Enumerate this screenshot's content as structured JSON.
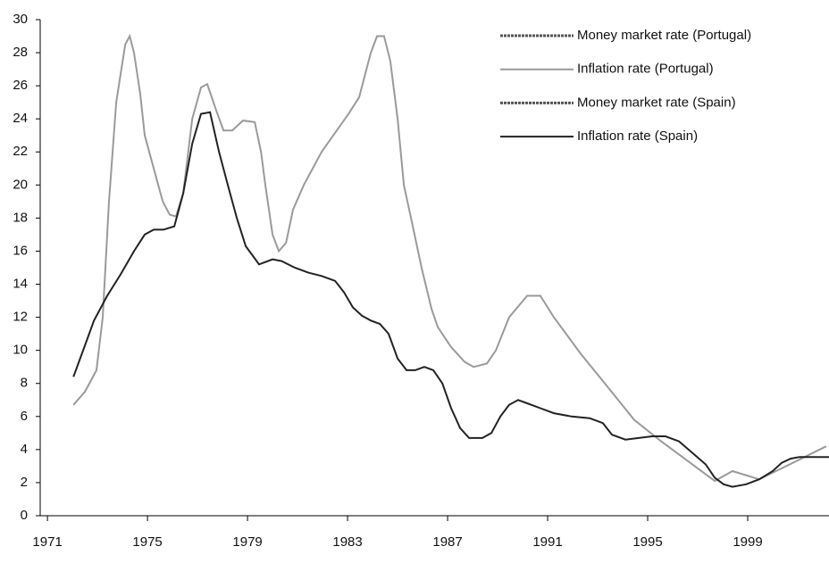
{
  "chart_data": {
    "type": "line",
    "xlim": [
      1970.71,
      2002.25
    ],
    "xticks": [
      1971,
      1975,
      1979,
      1983,
      1987,
      1991,
      1995,
      1999
    ],
    "ylim": [
      0,
      30
    ],
    "yticks": [
      0,
      2,
      4,
      6,
      8,
      10,
      12,
      14,
      16,
      18,
      20,
      22,
      24,
      26,
      28,
      30
    ],
    "grid": false,
    "legend": "upper right",
    "series": [
      {
        "name": "Money market rate (Portugal)",
        "color": "#555555",
        "dash": true,
        "x": [],
        "values": []
      },
      {
        "name": "Inflation rate (Portugal)",
        "color": "#9a9a9a",
        "dash": false,
        "x": [
          1972.04,
          1972.5,
          1972.96,
          1973.21,
          1973.46,
          1973.75,
          1974.11,
          1974.29,
          1974.46,
          1974.71,
          1974.89,
          1975.25,
          1975.61,
          1975.89,
          1976.14,
          1976.43,
          1976.79,
          1977.14,
          1977.39,
          1977.75,
          1978.04,
          1978.39,
          1978.82,
          1979.29,
          1979.54,
          1979.71,
          1980,
          1980.25,
          1980.54,
          1980.82,
          1981.25,
          1981.96,
          1982.43,
          1983.04,
          1983.46,
          1983.93,
          1984.18,
          1984.46,
          1984.71,
          1985,
          1985.25,
          1985.61,
          1985.96,
          1986.36,
          1986.61,
          1987.14,
          1987.68,
          1988.04,
          1988.57,
          1988.93,
          1989.46,
          1990.18,
          1990.71,
          1991.25,
          1992.32,
          1993.39,
          1994.46,
          1995.54,
          1996.61,
          1997.68,
          1998.39,
          1999.46,
          2000.54,
          2002.14
        ],
        "values": [
          6.7,
          7.5,
          8.8,
          12,
          19,
          25,
          28.5,
          29,
          28,
          25.5,
          23,
          21,
          19,
          18.2,
          18.1,
          19.5,
          24,
          25.9,
          26.1,
          24.5,
          23.3,
          23.3,
          23.9,
          23.8,
          22,
          20,
          17,
          16,
          16.5,
          18.5,
          20,
          22,
          23,
          24.3,
          25.3,
          28,
          29,
          29,
          27.5,
          24,
          20,
          17.5,
          15,
          12.5,
          11.4,
          10.2,
          9.3,
          9,
          9.2,
          10,
          12,
          13.3,
          13.3,
          12,
          9.8,
          7.8,
          5.8,
          4.5,
          3.3,
          2.1,
          2.7,
          2.2,
          3,
          4.2
        ]
      },
      {
        "name": "Money market rate (Spain)",
        "color": "#555555",
        "dash": true,
        "x": [],
        "values": []
      },
      {
        "name": "Inflation rate (Spain)",
        "color": "#222222",
        "dash": false,
        "x": [
          1972.04,
          1972.5,
          1972.86,
          1973.39,
          1973.93,
          1974.46,
          1974.89,
          1975.25,
          1975.64,
          1976.07,
          1976.43,
          1976.79,
          1977.14,
          1977.5,
          1977.86,
          1978.21,
          1978.57,
          1978.93,
          1979.46,
          1980,
          1980.36,
          1980.89,
          1981.43,
          1981.96,
          1982.5,
          1982.86,
          1983.21,
          1983.57,
          1983.93,
          1984.29,
          1984.64,
          1985,
          1985.36,
          1985.71,
          1986.07,
          1986.43,
          1986.79,
          1987.14,
          1987.5,
          1987.86,
          1988.39,
          1988.75,
          1989.11,
          1989.46,
          1989.82,
          1990.18,
          1990.71,
          1991.25,
          1991.96,
          1992.68,
          1993.21,
          1993.57,
          1994.11,
          1994.64,
          1995.18,
          1995.71,
          1996.25,
          1996.79,
          1997.32,
          1997.68,
          1998.04,
          1998.39,
          1998.93,
          1999.46,
          2000,
          2000.36,
          2000.71,
          2001.07,
          2002.25
        ],
        "values": [
          8.4,
          10.3,
          11.8,
          13.3,
          14.6,
          16,
          17,
          17.3,
          17.3,
          17.5,
          19.5,
          22.5,
          24.3,
          24.4,
          22,
          20,
          18,
          16.3,
          15.2,
          15.5,
          15.4,
          15,
          14.7,
          14.5,
          14.2,
          13.5,
          12.6,
          12.1,
          11.8,
          11.6,
          11,
          9.5,
          8.8,
          8.8,
          9,
          8.8,
          8,
          6.5,
          5.3,
          4.7,
          4.7,
          5,
          6,
          6.7,
          7,
          6.8,
          6.5,
          6.2,
          6,
          5.9,
          5.6,
          4.9,
          4.6,
          4.7,
          4.8,
          4.8,
          4.5,
          3.8,
          3.1,
          2.3,
          1.9,
          1.75,
          1.9,
          2.2,
          2.7,
          3.2,
          3.45,
          3.55,
          3.55
        ]
      }
    ]
  }
}
